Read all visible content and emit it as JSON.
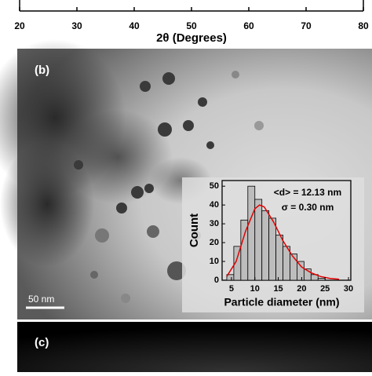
{
  "panel_labels": {
    "b": "(b)",
    "c": "(c)"
  },
  "scale_bar": "50 nm",
  "chart_data": [
    {
      "type": "axis",
      "xlabel": "2θ (Degrees)",
      "xlim": [
        20,
        80
      ],
      "xticks": [
        20,
        30,
        40,
        50,
        60,
        70,
        80
      ]
    },
    {
      "type": "histogram",
      "xlabel": "Particle diameter (nm)",
      "ylabel": "Count",
      "annotations": [
        "<d> = 12.13 nm",
        "σ = 0.30 nm"
      ],
      "bins": [
        4,
        5.5,
        7,
        8.5,
        10,
        11.5,
        13,
        14.5,
        16,
        17.5,
        19,
        20.5,
        22,
        23.5,
        25
      ],
      "values": [
        3,
        18,
        32,
        50,
        43,
        37,
        33,
        24,
        18,
        14,
        10,
        6,
        3,
        1
      ],
      "color": "#bdbdbd",
      "fit": {
        "color": "#e00000",
        "x": [
          4,
          6,
          8,
          10,
          11,
          12,
          14,
          16,
          18,
          20,
          22,
          24,
          26,
          28
        ],
        "y": [
          2,
          10,
          26,
          38,
          40,
          39,
          31,
          21,
          13,
          7,
          4,
          2,
          1,
          0.5
        ]
      },
      "xlim": [
        3,
        30.5
      ],
      "ylim": [
        0,
        53
      ],
      "xticks": [
        5,
        10,
        15,
        20,
        25,
        30
      ],
      "yticks": [
        0,
        10,
        20,
        30,
        40,
        50
      ]
    }
  ]
}
